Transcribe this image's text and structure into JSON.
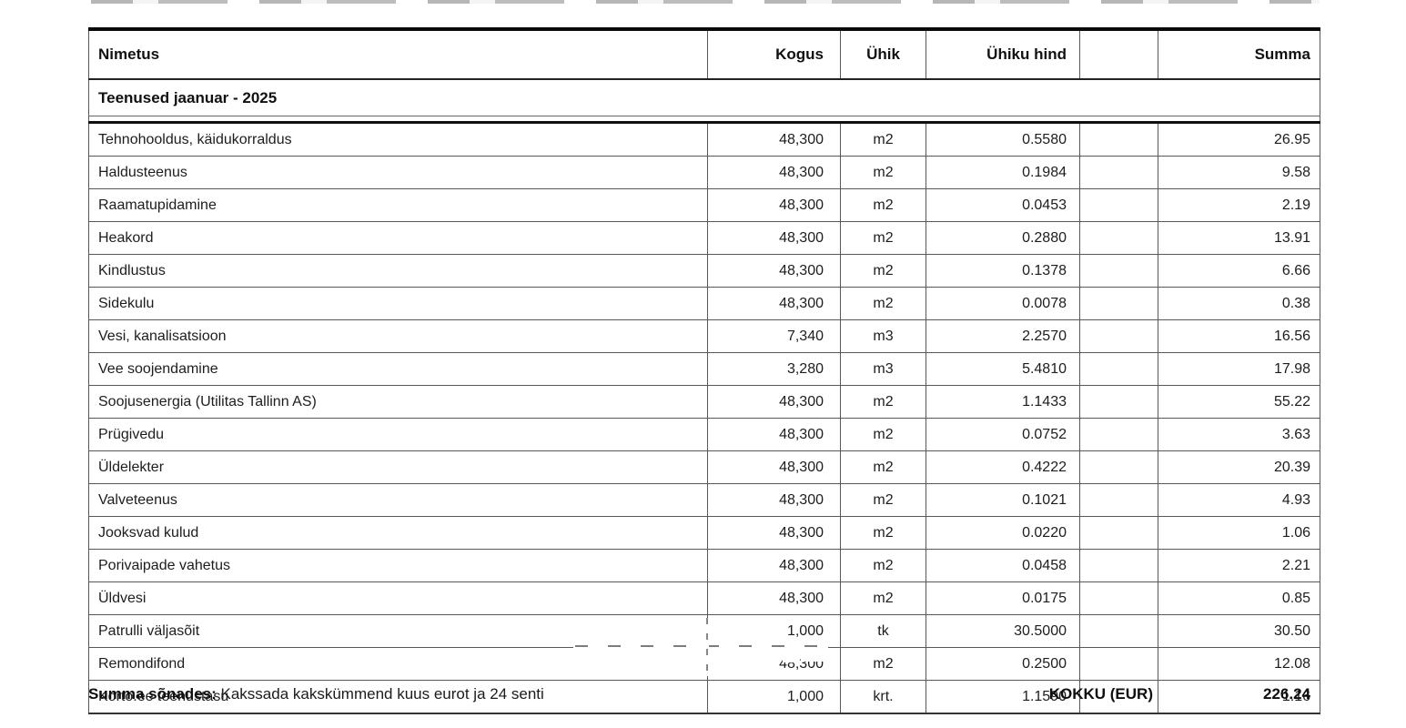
{
  "table": {
    "columns": [
      {
        "label": "Nimetus"
      },
      {
        "label": "Kogus"
      },
      {
        "label": "Ühik"
      },
      {
        "label": "Ühiku hind"
      },
      {
        "label": ""
      },
      {
        "label": "Summa"
      }
    ],
    "section_header": "Teenused jaanuar - 2025",
    "rows": [
      {
        "name": "Tehnohooldus, käidukorraldus",
        "qty": "48,300",
        "unit": "m2",
        "unit_price": "0.5580",
        "amount": "26.95"
      },
      {
        "name": "Haldusteenus",
        "qty": "48,300",
        "unit": "m2",
        "unit_price": "0.1984",
        "amount": "9.58"
      },
      {
        "name": "Raamatupidamine",
        "qty": "48,300",
        "unit": "m2",
        "unit_price": "0.0453",
        "amount": "2.19"
      },
      {
        "name": "Heakord",
        "qty": "48,300",
        "unit": "m2",
        "unit_price": "0.2880",
        "amount": "13.91"
      },
      {
        "name": "Kindlustus",
        "qty": "48,300",
        "unit": "m2",
        "unit_price": "0.1378",
        "amount": "6.66"
      },
      {
        "name": "Sidekulu",
        "qty": "48,300",
        "unit": "m2",
        "unit_price": "0.0078",
        "amount": "0.38"
      },
      {
        "name": "Vesi, kanalisatsioon",
        "qty": "7,340",
        "unit": "m3",
        "unit_price": "2.2570",
        "amount": "16.56"
      },
      {
        "name": "Vee soojendamine",
        "qty": "3,280",
        "unit": "m3",
        "unit_price": "5.4810",
        "amount": "17.98"
      },
      {
        "name": "Soojusenergia (Utilitas Tallinn AS)",
        "qty": "48,300",
        "unit": "m2",
        "unit_price": "1.1433",
        "amount": "55.22"
      },
      {
        "name": "Prügivedu",
        "qty": "48,300",
        "unit": "m2",
        "unit_price": "0.0752",
        "amount": "3.63"
      },
      {
        "name": "Üldelekter",
        "qty": "48,300",
        "unit": "m2",
        "unit_price": "0.4222",
        "amount": "20.39"
      },
      {
        "name": "Valveteenus",
        "qty": "48,300",
        "unit": "m2",
        "unit_price": "0.1021",
        "amount": "4.93"
      },
      {
        "name": "Jooksvad kulud",
        "qty": "48,300",
        "unit": "m2",
        "unit_price": "0.0220",
        "amount": "1.06"
      },
      {
        "name": "Porivaipade vahetus",
        "qty": "48,300",
        "unit": "m2",
        "unit_price": "0.0458",
        "amount": "2.21"
      },
      {
        "name": "Üldvesi",
        "qty": "48,300",
        "unit": "m2",
        "unit_price": "0.0175",
        "amount": "0.85"
      },
      {
        "name": "Patrulli väljasõit",
        "qty": "1,000",
        "unit": "tk",
        "unit_price": "30.5000",
        "amount": "30.50"
      },
      {
        "name": "Remondifond",
        "qty": "48,300",
        "unit": "m2",
        "unit_price": "0.2500",
        "amount": "12.08"
      },
      {
        "name": "Korto.ee teenustasu",
        "qty": "1,000",
        "unit": "krt.",
        "unit_price": "1.1590",
        "amount": "1.16"
      }
    ]
  },
  "footer": {
    "amount_in_words_label": "Summa sõnades:",
    "amount_in_words": "Kakssada kakskümmend kuus eurot ja 24 senti",
    "total_label": "KOKKU (EUR)",
    "total_value": "226.24"
  }
}
